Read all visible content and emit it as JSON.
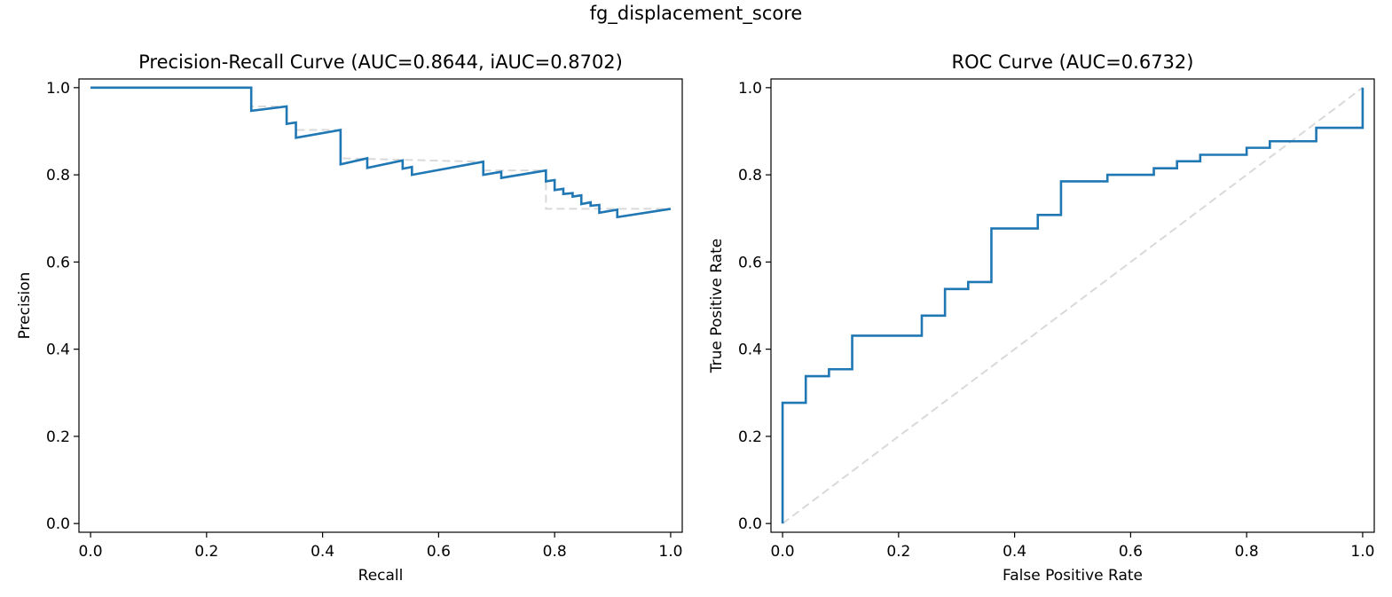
{
  "figure": {
    "suptitle": "fg_displacement_score"
  },
  "chart_data": [
    {
      "type": "line",
      "title": "Precision-Recall Curve (AUC=0.8644, iAUC=0.8702)",
      "xlabel": "Recall",
      "ylabel": "Precision",
      "xlim": [
        -0.02,
        1.02
      ],
      "ylim": [
        -0.02,
        1.02
      ],
      "xticks": [
        "0.0",
        "0.2",
        "0.4",
        "0.6",
        "0.8",
        "1.0"
      ],
      "yticks": [
        "0.0",
        "0.2",
        "0.4",
        "0.6",
        "0.8",
        "1.0"
      ],
      "grid": false,
      "series": [
        {
          "color": "#1f77b4",
          "style": "solid",
          "x": [
            0.0,
            0.277,
            0.277,
            0.338,
            0.338,
            0.354,
            0.354,
            0.431,
            0.431,
            0.477,
            0.477,
            0.538,
            0.538,
            0.554,
            0.554,
            0.677,
            0.677,
            0.708,
            0.708,
            0.785,
            0.785,
            0.8,
            0.8,
            0.815,
            0.815,
            0.831,
            0.831,
            0.846,
            0.846,
            0.862,
            0.862,
            0.877,
            0.877,
            0.908,
            0.908,
            1.0
          ],
          "y": [
            1.0,
            1.0,
            0.947,
            0.957,
            0.917,
            0.92,
            0.885,
            0.903,
            0.824,
            0.838,
            0.816,
            0.833,
            0.814,
            0.818,
            0.8,
            0.83,
            0.8,
            0.807,
            0.793,
            0.81,
            0.785,
            0.788,
            0.765,
            0.768,
            0.756,
            0.758,
            0.75,
            0.753,
            0.733,
            0.737,
            0.729,
            0.731,
            0.713,
            0.72,
            0.703,
            0.722
          ]
        },
        {
          "color": "#d9d9d9",
          "style": "dashed",
          "x": [
            0.0,
            0.277,
            0.277,
            0.338,
            0.338,
            0.354,
            0.354,
            0.431,
            0.431,
            0.677,
            0.677,
            0.785,
            0.785,
            1.0
          ],
          "y": [
            1.0,
            1.0,
            0.957,
            0.957,
            0.92,
            0.92,
            0.903,
            0.903,
            0.838,
            0.83,
            0.81,
            0.81,
            0.722,
            0.722
          ]
        }
      ]
    },
    {
      "type": "line",
      "title": "ROC Curve (AUC=0.6732)",
      "xlabel": "False Positive Rate",
      "ylabel": "True Positive Rate",
      "xlim": [
        -0.02,
        1.02
      ],
      "ylim": [
        -0.02,
        1.02
      ],
      "xticks": [
        "0.0",
        "0.2",
        "0.4",
        "0.6",
        "0.8",
        "1.0"
      ],
      "yticks": [
        "0.0",
        "0.2",
        "0.4",
        "0.6",
        "0.8",
        "1.0"
      ],
      "grid": false,
      "series": [
        {
          "color": "#1f77b4",
          "style": "solid",
          "x": [
            0.0,
            0.0,
            0.04,
            0.04,
            0.08,
            0.08,
            0.12,
            0.12,
            0.24,
            0.24,
            0.28,
            0.28,
            0.32,
            0.32,
            0.36,
            0.36,
            0.44,
            0.44,
            0.48,
            0.48,
            0.56,
            0.56,
            0.64,
            0.64,
            0.68,
            0.68,
            0.72,
            0.72,
            0.8,
            0.8,
            0.84,
            0.84,
            0.92,
            0.92,
            1.0,
            1.0
          ],
          "y": [
            0.0,
            0.277,
            0.277,
            0.338,
            0.338,
            0.354,
            0.354,
            0.431,
            0.431,
            0.477,
            0.477,
            0.538,
            0.538,
            0.554,
            0.554,
            0.677,
            0.677,
            0.708,
            0.708,
            0.785,
            0.785,
            0.8,
            0.8,
            0.815,
            0.815,
            0.831,
            0.831,
            0.846,
            0.846,
            0.862,
            0.862,
            0.877,
            0.877,
            0.908,
            0.908,
            1.0
          ]
        },
        {
          "color": "#d9d9d9",
          "style": "dashed",
          "x": [
            0.0,
            1.0
          ],
          "y": [
            0.0,
            1.0
          ]
        }
      ]
    }
  ]
}
